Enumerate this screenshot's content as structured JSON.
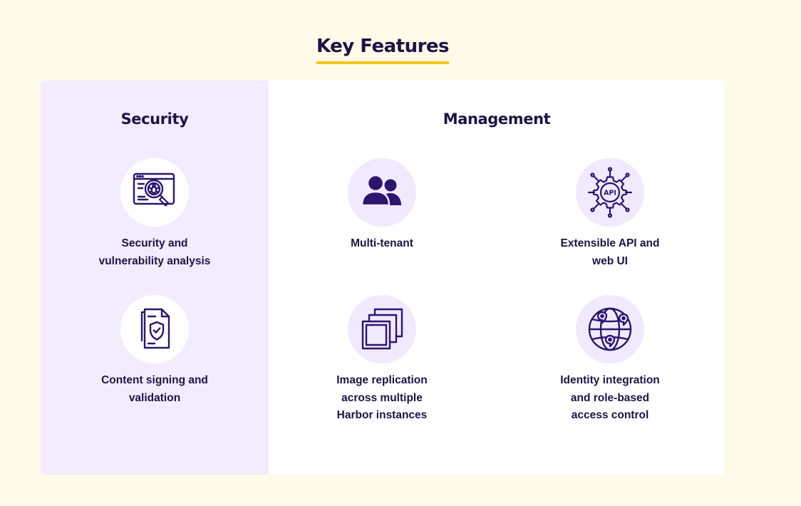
{
  "heading": "Key Features",
  "colors": {
    "page_background": "#fffbe8",
    "security_panel": "#f3ecff",
    "icon_circle": "#f1eaff",
    "text": "#1c1445",
    "icon": "#2b1570",
    "heading_underline": "#f5c518"
  },
  "security": {
    "title": "Security",
    "features": [
      {
        "label": "Security and\nvulnerability analysis",
        "icon": "bug-scan-icon"
      },
      {
        "label": "Content signing and\nvalidation",
        "icon": "signed-document-icon"
      }
    ]
  },
  "management": {
    "title": "Management",
    "features": [
      {
        "label": "Multi-tenant",
        "icon": "users-icon"
      },
      {
        "label": "Extensible API and\nweb UI",
        "icon": "api-gear-icon",
        "icon_text": "API"
      },
      {
        "label": "Image replication\nacross multiple\nHarbor instances",
        "icon": "replication-icon"
      },
      {
        "label": "Identity integration\nand role-based\naccess control",
        "icon": "globe-location-icon"
      }
    ]
  }
}
